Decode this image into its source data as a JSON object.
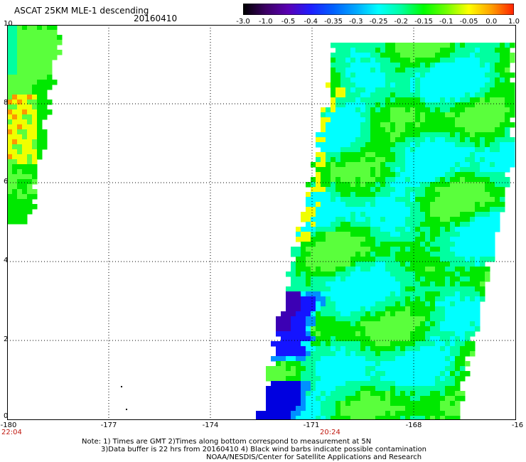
{
  "header": {
    "title": "ASCAT 25KM MLE-1 descending",
    "date": "20160410"
  },
  "colorbar": {
    "ticks": [
      "-3.0",
      "-1.0",
      "-0.5",
      "-0.4",
      "-0.35",
      "-0.3",
      "-0.25",
      "-0.2",
      "-0.15",
      "-0.1",
      "-0.05",
      "0.0",
      "1.0"
    ],
    "colors": [
      "#000000",
      "#3c0064",
      "#5a00b4",
      "#1e1eff",
      "#0060ff",
      "#00a8ff",
      "#00ffff",
      "#00ffa0",
      "#00ff00",
      "#70ff00",
      "#ffff00",
      "#ffa000",
      "#ff2000"
    ]
  },
  "axes": {
    "x_ticks": [
      "-180",
      "-177",
      "-174",
      "-171",
      "-168",
      "-16"
    ],
    "y_ticks": [
      "10",
      "8",
      "6",
      "4",
      "2",
      "0"
    ],
    "time_labels": [
      "22:04",
      "20:24"
    ]
  },
  "notes": {
    "line1": "Note: 1) Times are GMT 2)Times along bottom correspond to measurement at 5N",
    "line2": "3)Data buffer is 22 hrs from 20160410 4) Black wind barbs indicate possible contamination",
    "line3": "NOAA/NESDIS/Center for Satellite Applications and Research"
  },
  "map": {
    "lon_range": [
      -180,
      -165
    ],
    "lat_range": [
      0,
      10
    ],
    "palette": {
      "green": "#00e800",
      "light_green": "#5aff3c",
      "aqua_green": "#00ffa0",
      "cyan": "#00ffff",
      "yellow": "#f0ff00",
      "orange": "#ff9600",
      "blue": "#1414ff",
      "deep_blue": "#0000e0",
      "purple": "#3c00b4",
      "sky_blue": "#0090ff"
    }
  }
}
